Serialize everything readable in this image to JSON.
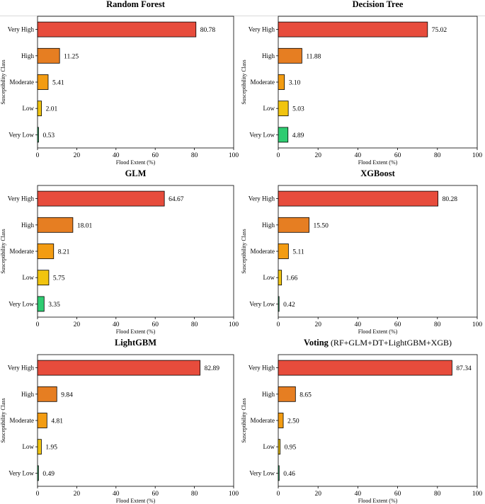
{
  "chart_data": [
    {
      "type": "bar",
      "orientation": "horizontal",
      "title": "Random Forest",
      "categories": [
        "Very High",
        "High",
        "Moderate",
        "Low",
        "Very Low"
      ],
      "values": [
        80.78,
        11.25,
        5.41,
        2.01,
        0.53
      ],
      "value_labels": [
        "80.78",
        "11.25",
        "5.41",
        "2.01",
        "0.53"
      ],
      "xlabel": "Flood Extent (%)",
      "ylabel": "Susceptibility Class",
      "xlim": [
        0,
        100
      ],
      "xticks": [
        "0",
        "20",
        "40",
        "60",
        "80",
        "100"
      ],
      "grid": false
    },
    {
      "type": "bar",
      "orientation": "horizontal",
      "title": "Decision Tree",
      "categories": [
        "Very High",
        "High",
        "Moderate",
        "Low",
        "Very Low"
      ],
      "values": [
        75.02,
        11.88,
        3.1,
        5.03,
        4.89
      ],
      "value_labels": [
        "75.02",
        "11.88",
        "3.10",
        "5.03",
        "4.89"
      ],
      "xlabel": "Flood Extent (%)",
      "ylabel": "Susceptibility Class",
      "xlim": [
        0,
        100
      ],
      "xticks": [
        "0",
        "20",
        "40",
        "60",
        "80",
        "100"
      ],
      "grid": false
    },
    {
      "type": "bar",
      "orientation": "horizontal",
      "title": "GLM",
      "categories": [
        "Very High",
        "High",
        "Moderate",
        "Low",
        "Very Low"
      ],
      "values": [
        64.67,
        18.01,
        8.21,
        5.75,
        3.35
      ],
      "value_labels": [
        "64.67",
        "18.01",
        "8.21",
        "5.75",
        "3.35"
      ],
      "xlabel": "Flood Extent (%)",
      "ylabel": "Susceptibility Class",
      "xlim": [
        0,
        100
      ],
      "xticks": [
        "0",
        "20",
        "40",
        "60",
        "80",
        "100"
      ],
      "grid": false
    },
    {
      "type": "bar",
      "orientation": "horizontal",
      "title": "XGBoost",
      "categories": [
        "Very High",
        "High",
        "Moderate",
        "Low",
        "Very Low"
      ],
      "values": [
        80.28,
        15.5,
        5.11,
        1.66,
        0.42
      ],
      "value_labels": [
        "80.28",
        "15.50",
        "5.11",
        "1.66",
        "0.42"
      ],
      "xlabel": "Flood Extent (%)",
      "ylabel": "Susceptibility Class",
      "xlim": [
        0,
        100
      ],
      "xticks": [
        "0",
        "20",
        "40",
        "60",
        "80",
        "100"
      ],
      "grid": false
    },
    {
      "type": "bar",
      "orientation": "horizontal",
      "title": "LightGBM",
      "categories": [
        "Very High",
        "High",
        "Moderate",
        "Low",
        "Very Low"
      ],
      "values": [
        82.89,
        9.84,
        4.81,
        1.95,
        0.49
      ],
      "value_labels": [
        "82.89",
        "9.84",
        "4.81",
        "1.95",
        "0.49"
      ],
      "xlabel": "Flood Extent (%)",
      "ylabel": "Susceptibility Class",
      "xlim": [
        0,
        100
      ],
      "xticks": [
        "0",
        "20",
        "40",
        "60",
        "80",
        "100"
      ],
      "grid": false
    },
    {
      "type": "bar",
      "orientation": "horizontal",
      "title": "Voting",
      "title_suffix": " (RF+GLM+DT+LightGBM+XGB)",
      "categories": [
        "Very High",
        "High",
        "Moderate",
        "Low",
        "Very Low"
      ],
      "values": [
        87.34,
        8.65,
        2.5,
        0.95,
        0.46
      ],
      "value_labels": [
        "87.34",
        "8.65",
        "2.50",
        "0.95",
        "0.46"
      ],
      "xlabel": "Flood Extent (%)",
      "ylabel": "Susceptibility Class",
      "xlim": [
        0,
        100
      ],
      "xticks": [
        "0",
        "20",
        "40",
        "60",
        "80",
        "100"
      ],
      "grid": false
    }
  ],
  "colors": {
    "Very High": "#e74c3c",
    "High": "#e67e22",
    "Moderate": "#f39c12",
    "Low": "#f1c40f",
    "Very Low": "#2ecc71"
  }
}
